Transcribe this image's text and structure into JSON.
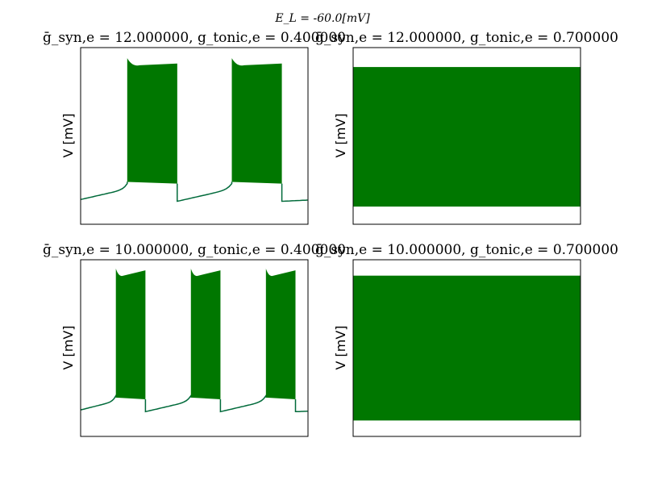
{
  "suptitle": "E_L = -60.0[mV]",
  "colors": {
    "trace": "#007700",
    "trace_edge": "#006a3a",
    "axes": "#000000"
  },
  "chart_data": [
    {
      "type": "line",
      "title": "ḡ_syn,e = 12.000000,  g_tonic,e = 0.400000",
      "ylabel": "V [mV]",
      "x_ticks_shown": false,
      "y_ticks_shown": false,
      "pattern": "bursting",
      "bursts": [
        [
          0.205,
          0.425
        ],
        [
          0.665,
          0.885
        ]
      ],
      "baseline": {
        "start": 0.14,
        "end": 0.2,
        "burst_floor": 0.24,
        "ramp_tip": 0.23
      },
      "spike_peak": {
        "start": 0.94,
        "end": 0.91
      },
      "ylim": [
        0,
        1
      ]
    },
    {
      "type": "line",
      "title": "ḡ_syn,e = 12.000000,  g_tonic,e = 0.700000",
      "ylabel": "V [mV]",
      "x_ticks_shown": false,
      "y_ticks_shown": false,
      "pattern": "tonic",
      "band": [
        0.1,
        0.89
      ],
      "ylim": [
        0,
        1
      ]
    },
    {
      "type": "line",
      "title": "ḡ_syn,e = 10.000000,  g_tonic,e = 0.400000",
      "ylabel": "V [mV]",
      "x_ticks_shown": false,
      "y_ticks_shown": false,
      "pattern": "bursting",
      "bursts": [
        [
          0.155,
          0.285
        ],
        [
          0.485,
          0.615
        ],
        [
          0.815,
          0.945
        ]
      ],
      "baseline": {
        "start": 0.15,
        "end": 0.2,
        "burst_floor": 0.22,
        "ramp_tip": 0.23
      },
      "spike_peak": {
        "start": 0.95,
        "end": 0.94
      },
      "ylim": [
        0,
        1
      ]
    },
    {
      "type": "line",
      "title": "ḡ_syn,e = 10.000000,  g_tonic,e = 0.700000",
      "ylabel": "V [mV]",
      "x_ticks_shown": false,
      "y_ticks_shown": false,
      "pattern": "tonic",
      "band": [
        0.09,
        0.91
      ],
      "ylim": [
        0,
        1
      ]
    }
  ]
}
